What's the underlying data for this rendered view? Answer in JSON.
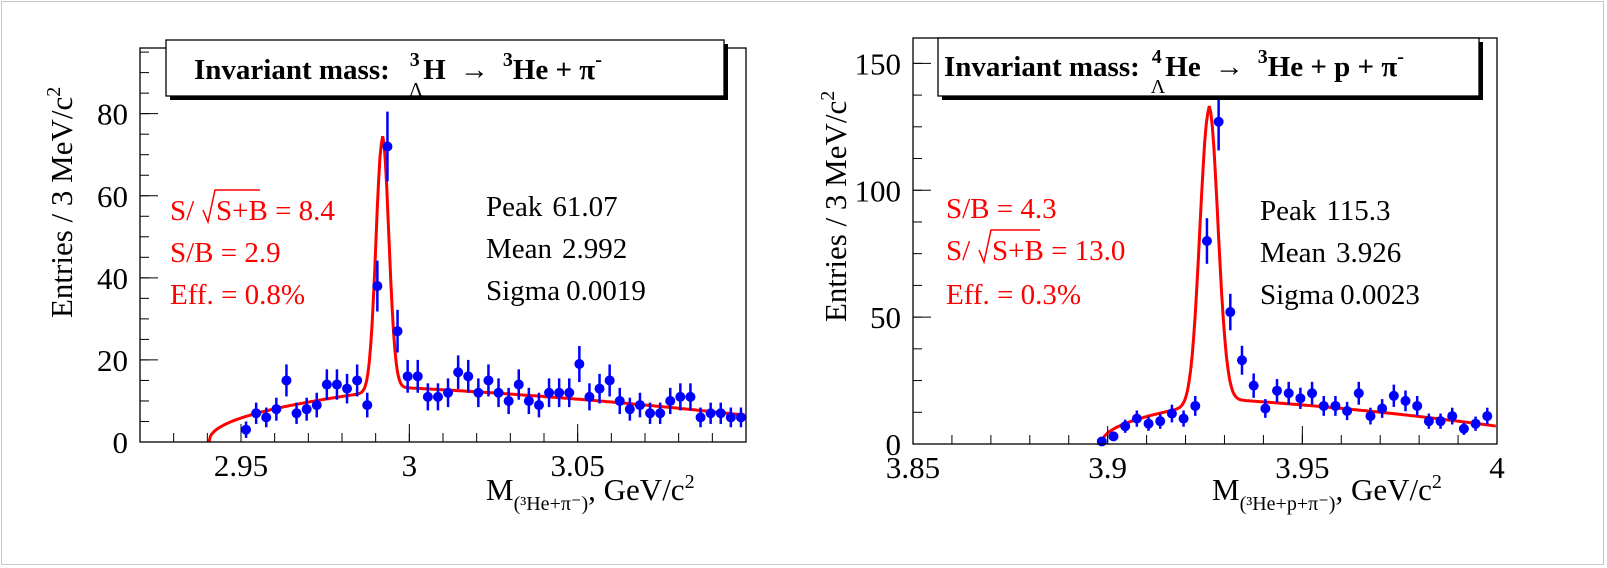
{
  "colors": {
    "points": "#0000ff",
    "fit": "#ff0000",
    "axis": "#000000",
    "annot": "#ff0000"
  },
  "chart_data": [
    {
      "type": "scatter",
      "title_prefix": "Invariant mass:",
      "title_nucleus_sup": "3",
      "title_nucleus_sub": "Λ",
      "title_nucleus": "H",
      "title_arrow": "→",
      "title_product_sup": "3",
      "title_products": "He +  π",
      "title_products_sup": "-",
      "ylabel": "Entries / 3 MeV/c",
      "ylabel_sup": "2",
      "xlabel_prefix": "M",
      "xlabel_sub": "(³He+π⁻)",
      "xlabel_suffix": ", GeV/c",
      "xlabel_sup": "2",
      "xlim": [
        2.92,
        3.1
      ],
      "ylim": [
        0,
        96
      ],
      "xticks": [
        2.95,
        3.0,
        3.05
      ],
      "xtick_labels": [
        "2.95",
        "3",
        "3.05"
      ],
      "yticks": [
        0,
        20,
        40,
        60,
        80
      ],
      "ytick_labels": [
        "0",
        "20",
        "40",
        "60",
        "80"
      ],
      "stats": {
        "peak_label": "Peak",
        "peak": "61.07",
        "mean_label": "Mean",
        "mean": "2.992",
        "sigma_label": "Sigma",
        "sigma": "0.0019"
      },
      "annotations": [
        {
          "pre": "S/",
          "root": "S+B",
          "post": " = 8.4"
        },
        {
          "pre": "S/B = 2.9",
          "root": "",
          "post": ""
        },
        {
          "pre": "Eff. = 0.8%",
          "root": "",
          "post": ""
        }
      ],
      "fit": {
        "peak": 61.07,
        "mean": 2.992,
        "sigma": 0.0019,
        "bkg_start": 2.9405,
        "bkg_left_at_peak": 12.5,
        "bkg_right": [
          13.5,
          6.5
        ],
        "x_end": 3.1
      },
      "x": [
        2.9515,
        2.9545,
        2.9575,
        2.9605,
        2.9635,
        2.9665,
        2.9695,
        2.9725,
        2.9755,
        2.9785,
        2.9815,
        2.9845,
        2.9875,
        2.9905,
        2.9935,
        2.9965,
        2.9995,
        3.0025,
        3.0055,
        3.0085,
        3.0115,
        3.0145,
        3.0175,
        3.0205,
        3.0235,
        3.0265,
        3.0295,
        3.0325,
        3.0355,
        3.0385,
        3.0415,
        3.0445,
        3.0475,
        3.0505,
        3.0535,
        3.0565,
        3.0595,
        3.0625,
        3.0655,
        3.0685,
        3.0715,
        3.0745,
        3.0775,
        3.0805,
        3.0835,
        3.0865,
        3.0895,
        3.0925,
        3.0955,
        3.0985
      ],
      "y": [
        3,
        7,
        6,
        8,
        15,
        7,
        8,
        9,
        14,
        14,
        13,
        15,
        9,
        38,
        72,
        27,
        16,
        16,
        11,
        11,
        12,
        17,
        16,
        12,
        15,
        12,
        10,
        14,
        10,
        9,
        12,
        12,
        12,
        19,
        11,
        13,
        15,
        10,
        8,
        9,
        7,
        7,
        10,
        11,
        11,
        6,
        7,
        7,
        6,
        6
      ],
      "err": [
        2,
        2.6,
        2.4,
        2.8,
        3.9,
        2.6,
        2.8,
        3,
        3.7,
        3.7,
        3.6,
        3.9,
        3,
        6.2,
        8.5,
        5.2,
        4,
        4,
        3.3,
        3.3,
        3.5,
        4.1,
        4,
        3.5,
        3.9,
        3.5,
        3.2,
        3.7,
        3.2,
        3,
        3.5,
        3.5,
        3.5,
        4.4,
        3.3,
        3.6,
        3.9,
        3.2,
        2.8,
        3,
        2.6,
        2.6,
        3.2,
        3.3,
        3.3,
        2.4,
        2.6,
        2.6,
        2.4,
        2.4
      ]
    },
    {
      "type": "scatter",
      "title_prefix": "Invariant mass:",
      "title_nucleus_sup": "4",
      "title_nucleus_sub": "Λ",
      "title_nucleus": "He",
      "title_arrow": "→",
      "title_product_sup": "3",
      "title_products": "He + p +  π",
      "title_products_sup": "-",
      "ylabel": "Entries / 3 MeV/c",
      "ylabel_sup": "2",
      "xlabel_prefix": "M",
      "xlabel_sub": "(³He+p+π⁻)",
      "xlabel_suffix": ", GeV/c",
      "xlabel_sup": "2",
      "xlim": [
        3.85,
        4.0
      ],
      "ylim": [
        0,
        160
      ],
      "xticks": [
        3.85,
        3.9,
        3.95,
        4.0
      ],
      "xtick_labels": [
        "3.85",
        "3.9",
        "3.95",
        "4"
      ],
      "yticks": [
        0,
        50,
        100,
        150
      ],
      "ytick_labels": [
        "0",
        "50",
        "100",
        "150"
      ],
      "stats": {
        "peak_label": "Peak",
        "peak": "115.3",
        "mean_label": "Mean",
        "mean": "3.926",
        "sigma_label": "Sigma",
        "sigma": "0.0023"
      },
      "annotations": [
        {
          "pre": "S/B = 4.3",
          "root": "",
          "post": ""
        },
        {
          "pre": "S/",
          "root": "S+B",
          "post": " = 13.0"
        },
        {
          "pre": "Eff. = 0.3%",
          "root": "",
          "post": ""
        }
      ],
      "fit": {
        "peak": 115.3,
        "mean": 3.926,
        "sigma": 0.0023,
        "bkg_start": 3.8985,
        "bkg_left_at_peak": 16,
        "bkg_right": [
          18,
          7
        ],
        "x_end": 4.0
      },
      "x": [
        3.8985,
        3.9015,
        3.9045,
        3.9075,
        3.9105,
        3.9135,
        3.9165,
        3.9195,
        3.9225,
        3.9255,
        3.9285,
        3.9315,
        3.9345,
        3.9375,
        3.9405,
        3.9435,
        3.9465,
        3.9495,
        3.9525,
        3.9555,
        3.9585,
        3.9615,
        3.9645,
        3.9675,
        3.9705,
        3.9735,
        3.9765,
        3.9795,
        3.9825,
        3.9855,
        3.9885,
        3.9915,
        3.9945,
        3.9975
      ],
      "y": [
        1,
        3,
        7,
        10,
        8,
        9,
        12,
        10,
        15,
        80,
        127,
        52,
        33,
        23,
        14,
        21,
        20,
        18,
        20,
        15,
        15,
        13,
        20,
        11,
        14,
        19,
        17,
        15,
        9,
        9,
        11,
        6,
        8,
        11
      ],
      "err": [
        1,
        1.7,
        2.6,
        3.2,
        2.8,
        3,
        3.5,
        3.2,
        3.9,
        9,
        11.3,
        7.2,
        5.7,
        4.8,
        3.7,
        4.6,
        4.5,
        4.2,
        4.5,
        3.9,
        3.9,
        3.6,
        4.5,
        3.3,
        3.7,
        4.4,
        4.1,
        3.9,
        3,
        3,
        3.3,
        2.4,
        2.8,
        3.3
      ]
    }
  ]
}
